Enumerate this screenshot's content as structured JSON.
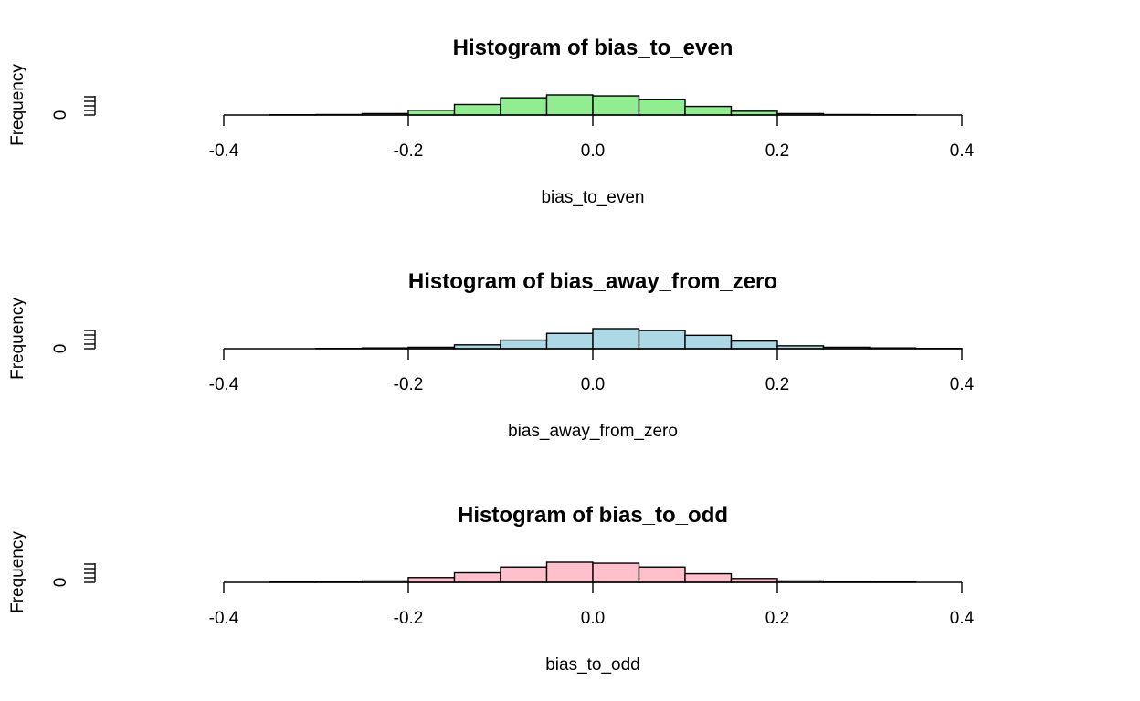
{
  "chart_data": [
    {
      "type": "bar",
      "title": "Histogram of bias_to_even",
      "xlabel": "bias_to_even",
      "ylabel": "Frequency",
      "color": "#90ee90",
      "xlim": [
        -0.4,
        0.4
      ],
      "x_ticks": [
        -0.4,
        -0.2,
        0.0,
        0.2,
        0.4
      ],
      "x_tick_labels": [
        "-0.4",
        "-0.2",
        "0.0",
        "0.2",
        "0.4"
      ],
      "y_tick_labels": [
        "0"
      ],
      "bin_edges": [
        -0.35,
        -0.3,
        -0.25,
        -0.2,
        -0.15,
        -0.1,
        -0.05,
        0.0,
        0.05,
        0.1,
        0.15,
        0.2,
        0.25,
        0.3,
        0.35
      ],
      "values": [
        0.3,
        0.5,
        1.5,
        5,
        11,
        18,
        21,
        20,
        16,
        9,
        4,
        1.5,
        0.5,
        0.3
      ]
    },
    {
      "type": "bar",
      "title": "Histogram of bias_away_from_zero",
      "xlabel": "bias_away_from_zero",
      "ylabel": "Frequency",
      "color": "#add8e6",
      "xlim": [
        -0.4,
        0.4
      ],
      "x_ticks": [
        -0.4,
        -0.2,
        0.0,
        0.2,
        0.4
      ],
      "x_tick_labels": [
        "-0.4",
        "-0.2",
        "0.0",
        "0.2",
        "0.4"
      ],
      "y_tick_labels": [
        "0"
      ],
      "bin_edges": [
        -0.3,
        -0.25,
        -0.2,
        -0.15,
        -0.1,
        -0.05,
        0.0,
        0.05,
        0.1,
        0.15,
        0.2,
        0.25,
        0.3,
        0.35,
        0.4
      ],
      "values": [
        0.3,
        0.8,
        1.5,
        4,
        9,
        16,
        21,
        19,
        14,
        8,
        3,
        1.5,
        0.8,
        0.3
      ]
    },
    {
      "type": "bar",
      "title": "Histogram of bias_to_odd",
      "xlabel": "bias_to_odd",
      "ylabel": "Frequency",
      "color": "#ffc0cb",
      "xlim": [
        -0.4,
        0.4
      ],
      "x_ticks": [
        -0.4,
        -0.2,
        0.0,
        0.2,
        0.4
      ],
      "x_tick_labels": [
        "-0.4",
        "-0.2",
        "0.0",
        "0.2",
        "0.4"
      ],
      "y_tick_labels": [
        "0"
      ],
      "bin_edges": [
        -0.35,
        -0.3,
        -0.25,
        -0.2,
        -0.15,
        -0.1,
        -0.05,
        0.0,
        0.05,
        0.1,
        0.15,
        0.2,
        0.25,
        0.3,
        0.35
      ],
      "values": [
        0.3,
        0.5,
        1.5,
        5,
        10,
        16,
        21,
        20,
        16,
        9,
        4,
        1.5,
        0.5,
        0.3
      ]
    }
  ]
}
